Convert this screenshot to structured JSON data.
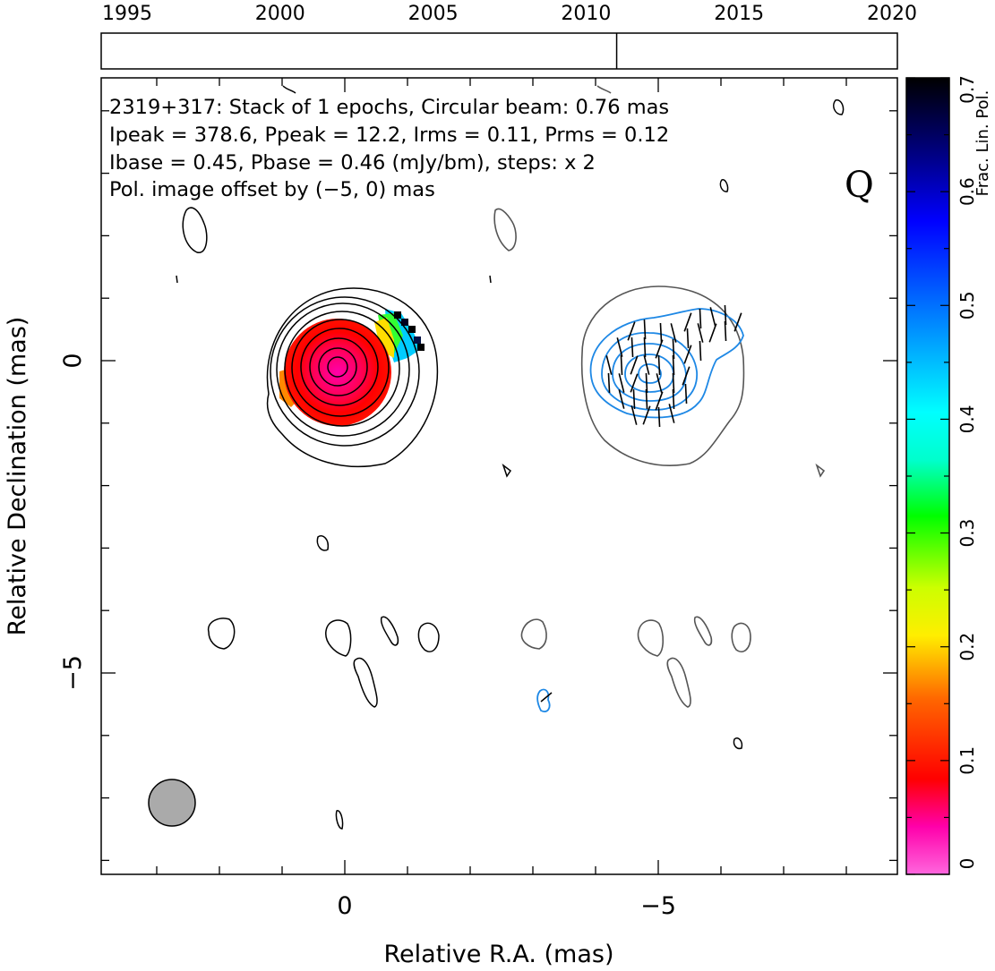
{
  "timeline": {
    "years": [
      "1995",
      "2000",
      "2005",
      "2010",
      "2015",
      "2020"
    ],
    "year_values": [
      1995,
      2000,
      2005,
      2010,
      2015,
      2020
    ],
    "range": [
      1995,
      2020
    ],
    "epoch_markers": [
      2011.0
    ]
  },
  "annotation": {
    "line1": "2319+317: Stack of 1 epochs, Circular beam: 0.76 mas",
    "line2": "Ipeak = 378.6, Ppeak = 12.2, Irms = 0.11, Prms = 0.12",
    "line3": "Ibase = 0.45, Pbase = 0.46 (mJy/bm), steps: x 2",
    "line4": "Pol. image offset by (−5, 0) mas",
    "line4_color": "#1e88e5",
    "quality_flag": "Q"
  },
  "axes": {
    "x_label": "Relative R.A. (mas)",
    "y_label": "Relative Declination (mas)",
    "x_ticks": [
      {
        "value": 0,
        "label": "0"
      },
      {
        "value": -5,
        "label": "−5"
      }
    ],
    "y_ticks": [
      {
        "value": 0,
        "label": "0"
      },
      {
        "value": -5,
        "label": "−5"
      }
    ],
    "x_range_mas": [
      3.9,
      -8.8
    ],
    "y_range_mas": [
      4.6,
      -8.2
    ]
  },
  "colorbar": {
    "label": "Frac. Lin. Pol.",
    "ticks": [
      "0",
      "0.1",
      "0.2",
      "0.3",
      "0.4",
      "0.5",
      "0.6",
      "0.7"
    ],
    "tick_values": [
      0,
      0.1,
      0.2,
      0.3,
      0.4,
      0.5,
      0.6,
      0.7
    ],
    "range": [
      0,
      0.7
    ]
  },
  "beam": {
    "major_mas": 0.76,
    "color": "#aaaaaa"
  },
  "colors": {
    "stokes_i_contours": "#000000",
    "pol_contours": "#1e88e5",
    "pol_base_contour": "#555555",
    "evpa_ticks": "#000000"
  },
  "chart_data": {
    "type": "heatmap",
    "title": "2319+317: Stack of 1 epochs, Circular beam: 0.76 mas",
    "xlabel": "Relative R.A. (mas)",
    "ylabel": "Relative Declination (mas)",
    "source": "2319+317",
    "epochs": 1,
    "beam_mas": 0.76,
    "Ipeak_mJy_bm": 378.6,
    "Ppeak_mJy_bm": 12.2,
    "Irms_mJy_bm": 0.11,
    "Prms_mJy_bm": 0.12,
    "Ibase_mJy_bm": 0.45,
    "Pbase_mJy_bm": 0.46,
    "contour_step_factor": 2,
    "pol_offset_mas": [
      -5,
      0
    ],
    "colorbar_range": [
      0,
      0.7
    ],
    "core_position_mas": [
      0,
      0
    ],
    "grid": false
  }
}
